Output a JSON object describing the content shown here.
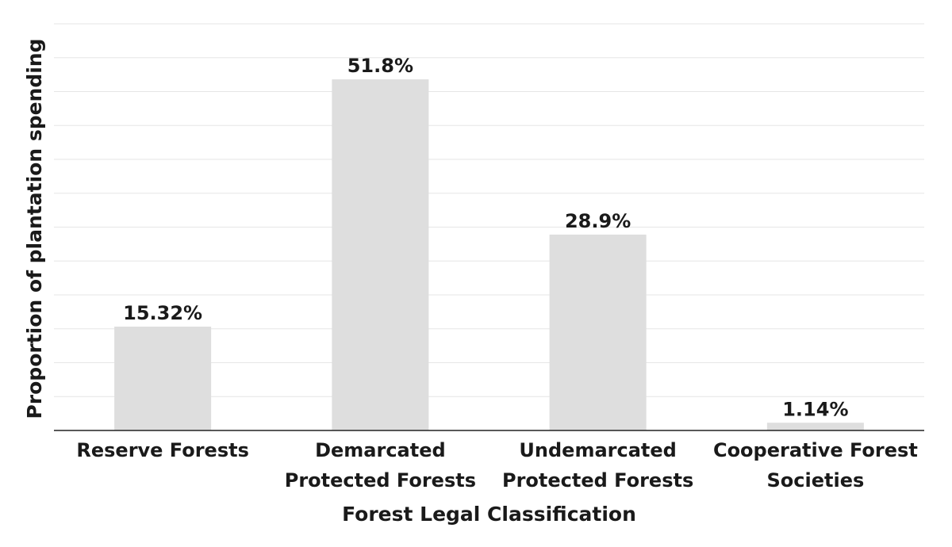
{
  "chart_data": {
    "type": "bar",
    "categories": [
      [
        "Reserve Forests"
      ],
      [
        "Demarcated",
        "Protected Forests"
      ],
      [
        "Undemarcated",
        "Protected Forests"
      ],
      [
        "Cooperative Forest",
        "Societies"
      ]
    ],
    "values": [
      15.32,
      51.8,
      28.9,
      1.14
    ],
    "data_labels": [
      "15.32%",
      "51.8%",
      "28.9%",
      "1.14%"
    ],
    "xlabel": "Forest Legal Classification",
    "ylabel": "Proportion of plantation spending",
    "ylim": [
      0,
      60
    ],
    "grid": true,
    "colors": {
      "bar": "#dedede",
      "grid": "#e6e6e6",
      "axis": "#222222",
      "text": "#1a1a1a"
    }
  }
}
